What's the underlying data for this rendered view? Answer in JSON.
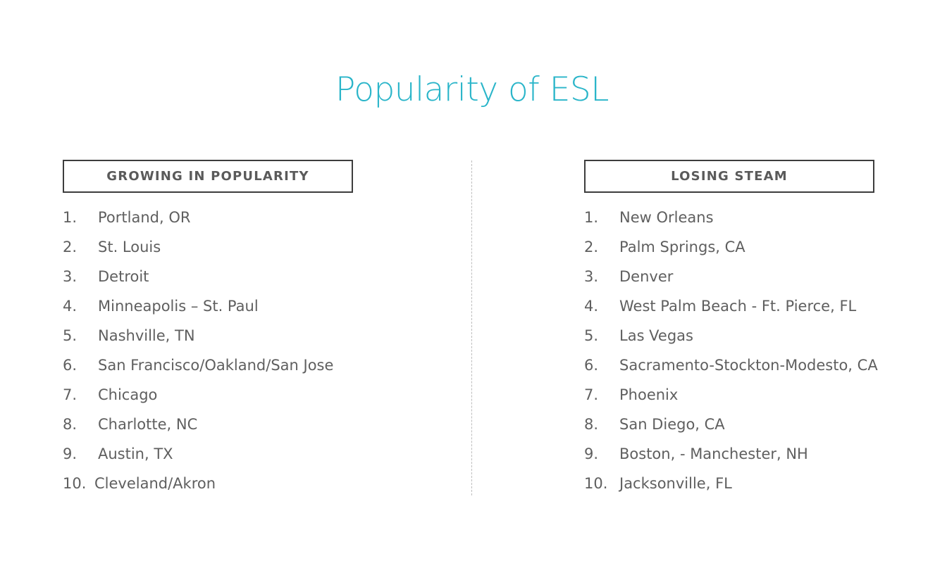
{
  "title": "Popularity of ESL",
  "colors": {
    "title": "#2ab5c9",
    "text": "#5f5f5f",
    "box_border": "#3d3d3d",
    "divider": "#bdbdbd"
  },
  "growing": {
    "header": "GROWING IN POPULARITY",
    "items": [
      {
        "num": "1.",
        "label": "Portland, OR"
      },
      {
        "num": "2.",
        "label": "St. Louis"
      },
      {
        "num": "3.",
        "label": "Detroit"
      },
      {
        "num": "4.",
        "label": "Minneapolis – St. Paul"
      },
      {
        "num": "5.",
        "label": "Nashville, TN"
      },
      {
        "num": "6.",
        "label": "San Francisco/Oakland/San Jose"
      },
      {
        "num": "7.",
        "label": "Chicago"
      },
      {
        "num": "8.",
        "label": "Charlotte, NC"
      },
      {
        "num": "9.",
        "label": "Austin, TX"
      },
      {
        "num": "10.",
        "label": "Cleveland/Akron"
      }
    ]
  },
  "losing": {
    "header": "LOSING STEAM",
    "items": [
      {
        "num": "1.",
        "label": "New Orleans"
      },
      {
        "num": "2.",
        "label": "Palm Springs, CA"
      },
      {
        "num": "3.",
        "label": "Denver"
      },
      {
        "num": "4.",
        "label": "West Palm Beach - Ft. Pierce, FL"
      },
      {
        "num": "5.",
        "label": "Las Vegas"
      },
      {
        "num": "6.",
        "label": "Sacramento-Stockton-Modesto, CA"
      },
      {
        "num": "7.",
        "label": "Phoenix"
      },
      {
        "num": "8.",
        "label": "San Diego, CA"
      },
      {
        "num": "9.",
        "label": "Boston, - Manchester, NH"
      },
      {
        "num": "10.",
        "label": "Jacksonville, FL"
      }
    ]
  }
}
